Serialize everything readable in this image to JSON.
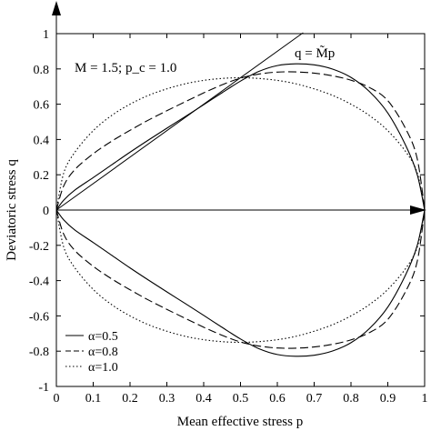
{
  "chart_data": {
    "type": "line",
    "xlabel": "Mean effective stress  p",
    "ylabel": "Deviatoric stress  q",
    "xlim": [
      0,
      1
    ],
    "ylim": [
      -1,
      1
    ],
    "xticks": [
      "0",
      "0.1",
      "0.2",
      "0.3",
      "0.4",
      "0.5",
      "0.6",
      "0.7",
      "0.8",
      "0.9",
      "1"
    ],
    "yticks": [
      "-1",
      "-0.8",
      "-0.6",
      "-0.4",
      "-0.2",
      "0",
      "0.2",
      "0.4",
      "0.6",
      "0.8",
      "1"
    ],
    "grid": false,
    "legend": "bottom-left",
    "annotations": {
      "params": "M = 1.5;  p_c = 1.0",
      "line_label": "q = M̃p"
    },
    "reference_line": {
      "name": "q = M̃p",
      "slope": 1.5,
      "x": [
        0,
        0.67
      ]
    },
    "series": [
      {
        "name": "α=0.5",
        "style": "solid",
        "x": [
          0,
          0.02,
          0.05,
          0.1,
          0.15,
          0.2,
          0.25,
          0.3,
          0.35,
          0.4,
          0.45,
          0.5,
          0.55,
          0.6,
          0.65,
          0.7,
          0.75,
          0.8,
          0.85,
          0.9,
          0.95,
          0.98,
          1
        ],
        "y": [
          0,
          0.056,
          0.113,
          0.184,
          0.256,
          0.328,
          0.397,
          0.464,
          0.53,
          0.597,
          0.665,
          0.731,
          0.786,
          0.819,
          0.829,
          0.823,
          0.799,
          0.752,
          0.672,
          0.55,
          0.36,
          0.2,
          0
        ]
      },
      {
        "name": "α=0.8",
        "style": "dashed",
        "x": [
          0,
          0.02,
          0.05,
          0.1,
          0.15,
          0.2,
          0.25,
          0.3,
          0.35,
          0.4,
          0.45,
          0.5,
          0.55,
          0.6,
          0.65,
          0.7,
          0.75,
          0.8,
          0.85,
          0.9,
          0.95,
          0.98,
          1
        ],
        "y": [
          0,
          0.137,
          0.229,
          0.319,
          0.39,
          0.452,
          0.51,
          0.563,
          0.614,
          0.664,
          0.71,
          0.748,
          0.771,
          0.782,
          0.783,
          0.776,
          0.761,
          0.736,
          0.695,
          0.62,
          0.455,
          0.29,
          0
        ]
      },
      {
        "name": "α=1.0",
        "style": "dotted",
        "x": [
          0,
          0.02,
          0.05,
          0.1,
          0.15,
          0.2,
          0.25,
          0.3,
          0.35,
          0.4,
          0.45,
          0.5,
          0.55,
          0.6,
          0.65,
          0.7,
          0.75,
          0.8,
          0.85,
          0.9,
          0.95,
          0.98,
          1
        ],
        "y": [
          0,
          0.21,
          0.327,
          0.45,
          0.536,
          0.6,
          0.65,
          0.687,
          0.716,
          0.735,
          0.746,
          0.75,
          0.746,
          0.735,
          0.716,
          0.687,
          0.65,
          0.6,
          0.536,
          0.45,
          0.327,
          0.21,
          0
        ]
      }
    ]
  }
}
